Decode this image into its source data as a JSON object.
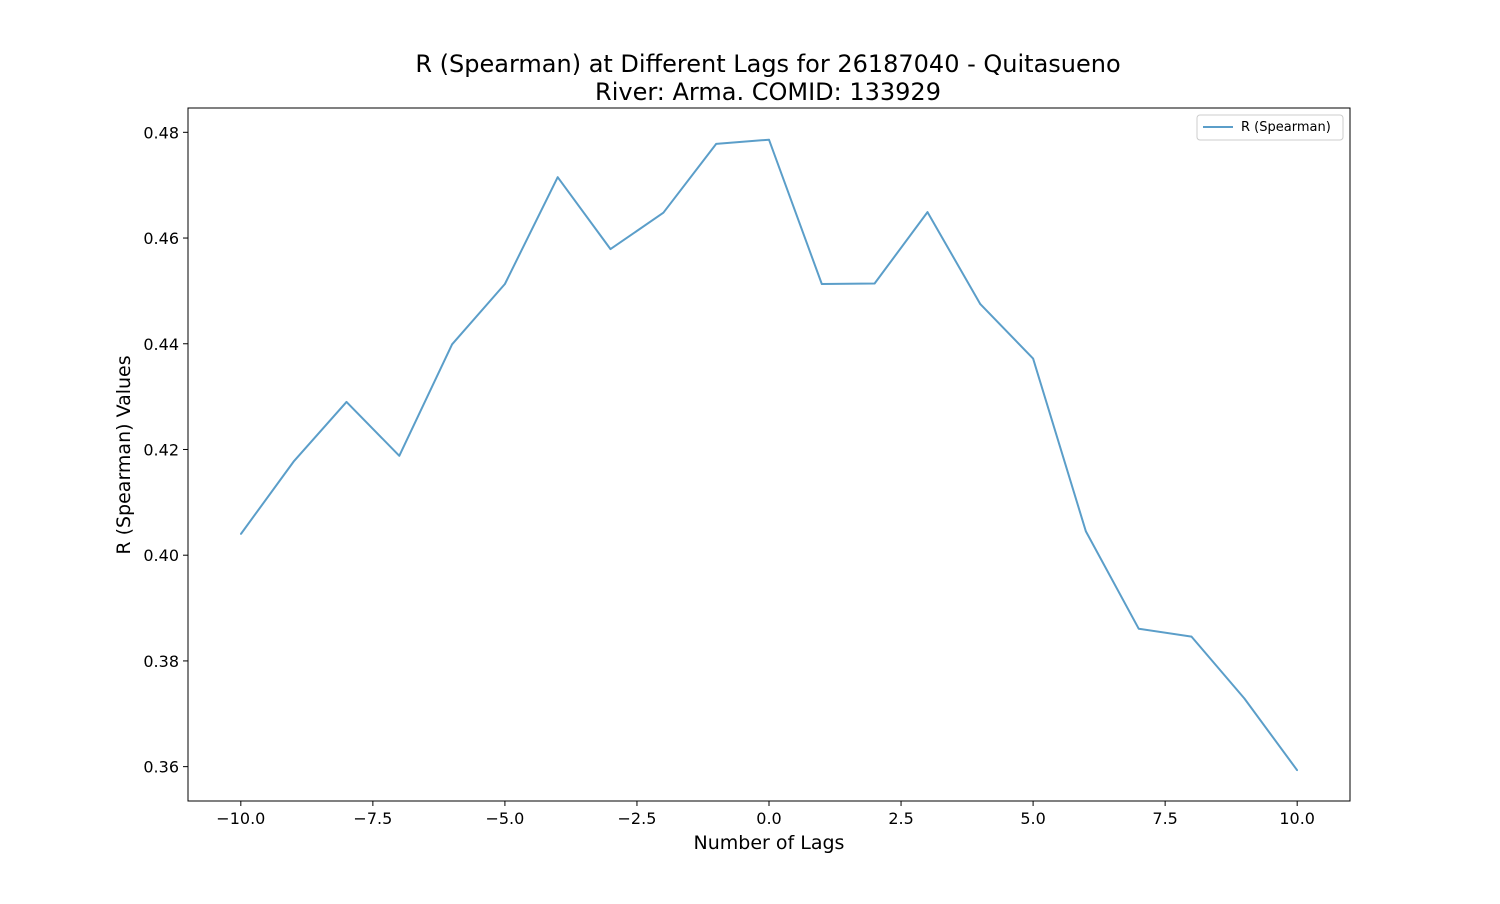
{
  "chart_data": {
    "type": "line",
    "title": "R (Spearman) at Different Lags for 26187040 - Quitasueno",
    "subtitle": "River: Arma. COMID: 133929",
    "xlabel": "Number of Lags",
    "ylabel": "R (Spearman) Values",
    "xlim": [
      -11,
      11
    ],
    "ylim": [
      0.3535,
      0.4846
    ],
    "x_ticks": [
      -10.0,
      -7.5,
      -5.0,
      -2.5,
      0.0,
      2.5,
      5.0,
      7.5,
      10.0
    ],
    "x_tick_labels": [
      "−10.0",
      "−7.5",
      "−5.0",
      "−2.5",
      "0.0",
      "2.5",
      "5.0",
      "7.5",
      "10.0"
    ],
    "y_ticks": [
      0.36,
      0.38,
      0.4,
      0.42,
      0.44,
      0.46,
      0.48
    ],
    "y_tick_labels": [
      "0.36",
      "0.38",
      "0.40",
      "0.42",
      "0.44",
      "0.46",
      "0.48"
    ],
    "grid": false,
    "legend_position": "top-right",
    "series": [
      {
        "name": "R (Spearman)",
        "color": "#5b9ec9",
        "x": [
          -10,
          -9,
          -8,
          -7,
          -6,
          -5,
          -4,
          -3,
          -2,
          -1,
          0,
          1,
          2,
          3,
          4,
          5,
          6,
          7,
          8,
          9,
          10
        ],
        "values": [
          0.404,
          0.4177,
          0.429,
          0.4188,
          0.4399,
          0.4513,
          0.4715,
          0.4579,
          0.4648,
          0.4778,
          0.4786,
          0.4513,
          0.4514,
          0.4649,
          0.4475,
          0.4372,
          0.4045,
          0.3861,
          0.3846,
          0.3729,
          0.3593
        ]
      }
    ]
  }
}
